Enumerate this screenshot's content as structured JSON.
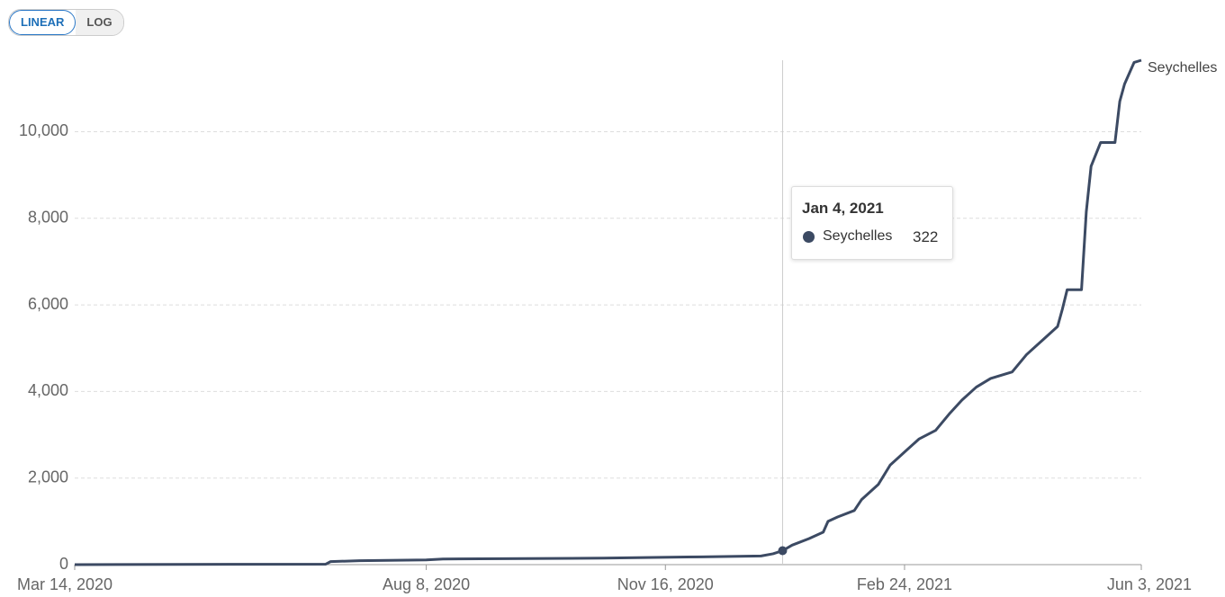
{
  "controls": {
    "linear": "LINEAR",
    "log": "LOG"
  },
  "chart_data": {
    "type": "line",
    "x": [
      "2020-03-14",
      "2020-06-27",
      "2020-06-29",
      "2020-07-11",
      "2020-08-08",
      "2020-08-15",
      "2020-10-21",
      "2020-12-01",
      "2020-12-26",
      "2020-12-31",
      "2021-01-04",
      "2021-01-08",
      "2021-01-15",
      "2021-01-21",
      "2021-01-23",
      "2021-01-27",
      "2021-02-03",
      "2021-02-06",
      "2021-02-13",
      "2021-02-18",
      "2021-02-24",
      "2021-03-02",
      "2021-03-09",
      "2021-03-15",
      "2021-03-20",
      "2021-03-26",
      "2021-04-01",
      "2021-04-10",
      "2021-04-16",
      "2021-04-23",
      "2021-04-29",
      "2021-05-01",
      "2021-05-03",
      "2021-05-09",
      "2021-05-11",
      "2021-05-13",
      "2021-05-17",
      "2021-05-23",
      "2021-05-25",
      "2021-05-27",
      "2021-05-31",
      "2021-06-03"
    ],
    "series": [
      {
        "name": "Seychelles",
        "color": "#3c4a63",
        "values": [
          0,
          11,
          70,
          90,
          110,
          130,
          150,
          180,
          200,
          250,
          322,
          450,
          600,
          750,
          1000,
          1100,
          1250,
          1500,
          1850,
          2300,
          2600,
          2900,
          3100,
          3500,
          3800,
          4100,
          4300,
          4450,
          4850,
          5200,
          5500,
          5900,
          6350,
          6350,
          8150,
          9200,
          9750,
          9750,
          10700,
          11100,
          11600,
          11650
        ]
      }
    ],
    "xlim": [
      "2020-03-14",
      "2021-06-03"
    ],
    "xticks": [
      {
        "value": "2020-03-14",
        "label": "Mar 14, 2020"
      },
      {
        "value": "2020-08-08",
        "label": "Aug 8, 2020"
      },
      {
        "value": "2020-11-16",
        "label": "Nov 16, 2020"
      },
      {
        "value": "2021-02-24",
        "label": "Feb 24, 2021"
      },
      {
        "value": "2021-06-03",
        "label": "Jun 3, 2021"
      }
    ],
    "ylim": [
      0,
      11650
    ],
    "yticks": [
      0,
      {
        "value": 2000,
        "label": "2,000"
      },
      {
        "value": 4000,
        "label": "4,000"
      },
      {
        "value": 6000,
        "label": "6,000"
      },
      {
        "value": 8000,
        "label": "8,000"
      },
      {
        "value": 10000,
        "label": "10,000"
      }
    ],
    "grid": true,
    "tooltip": {
      "date": "Jan 4, 2021",
      "value": 322
    }
  }
}
